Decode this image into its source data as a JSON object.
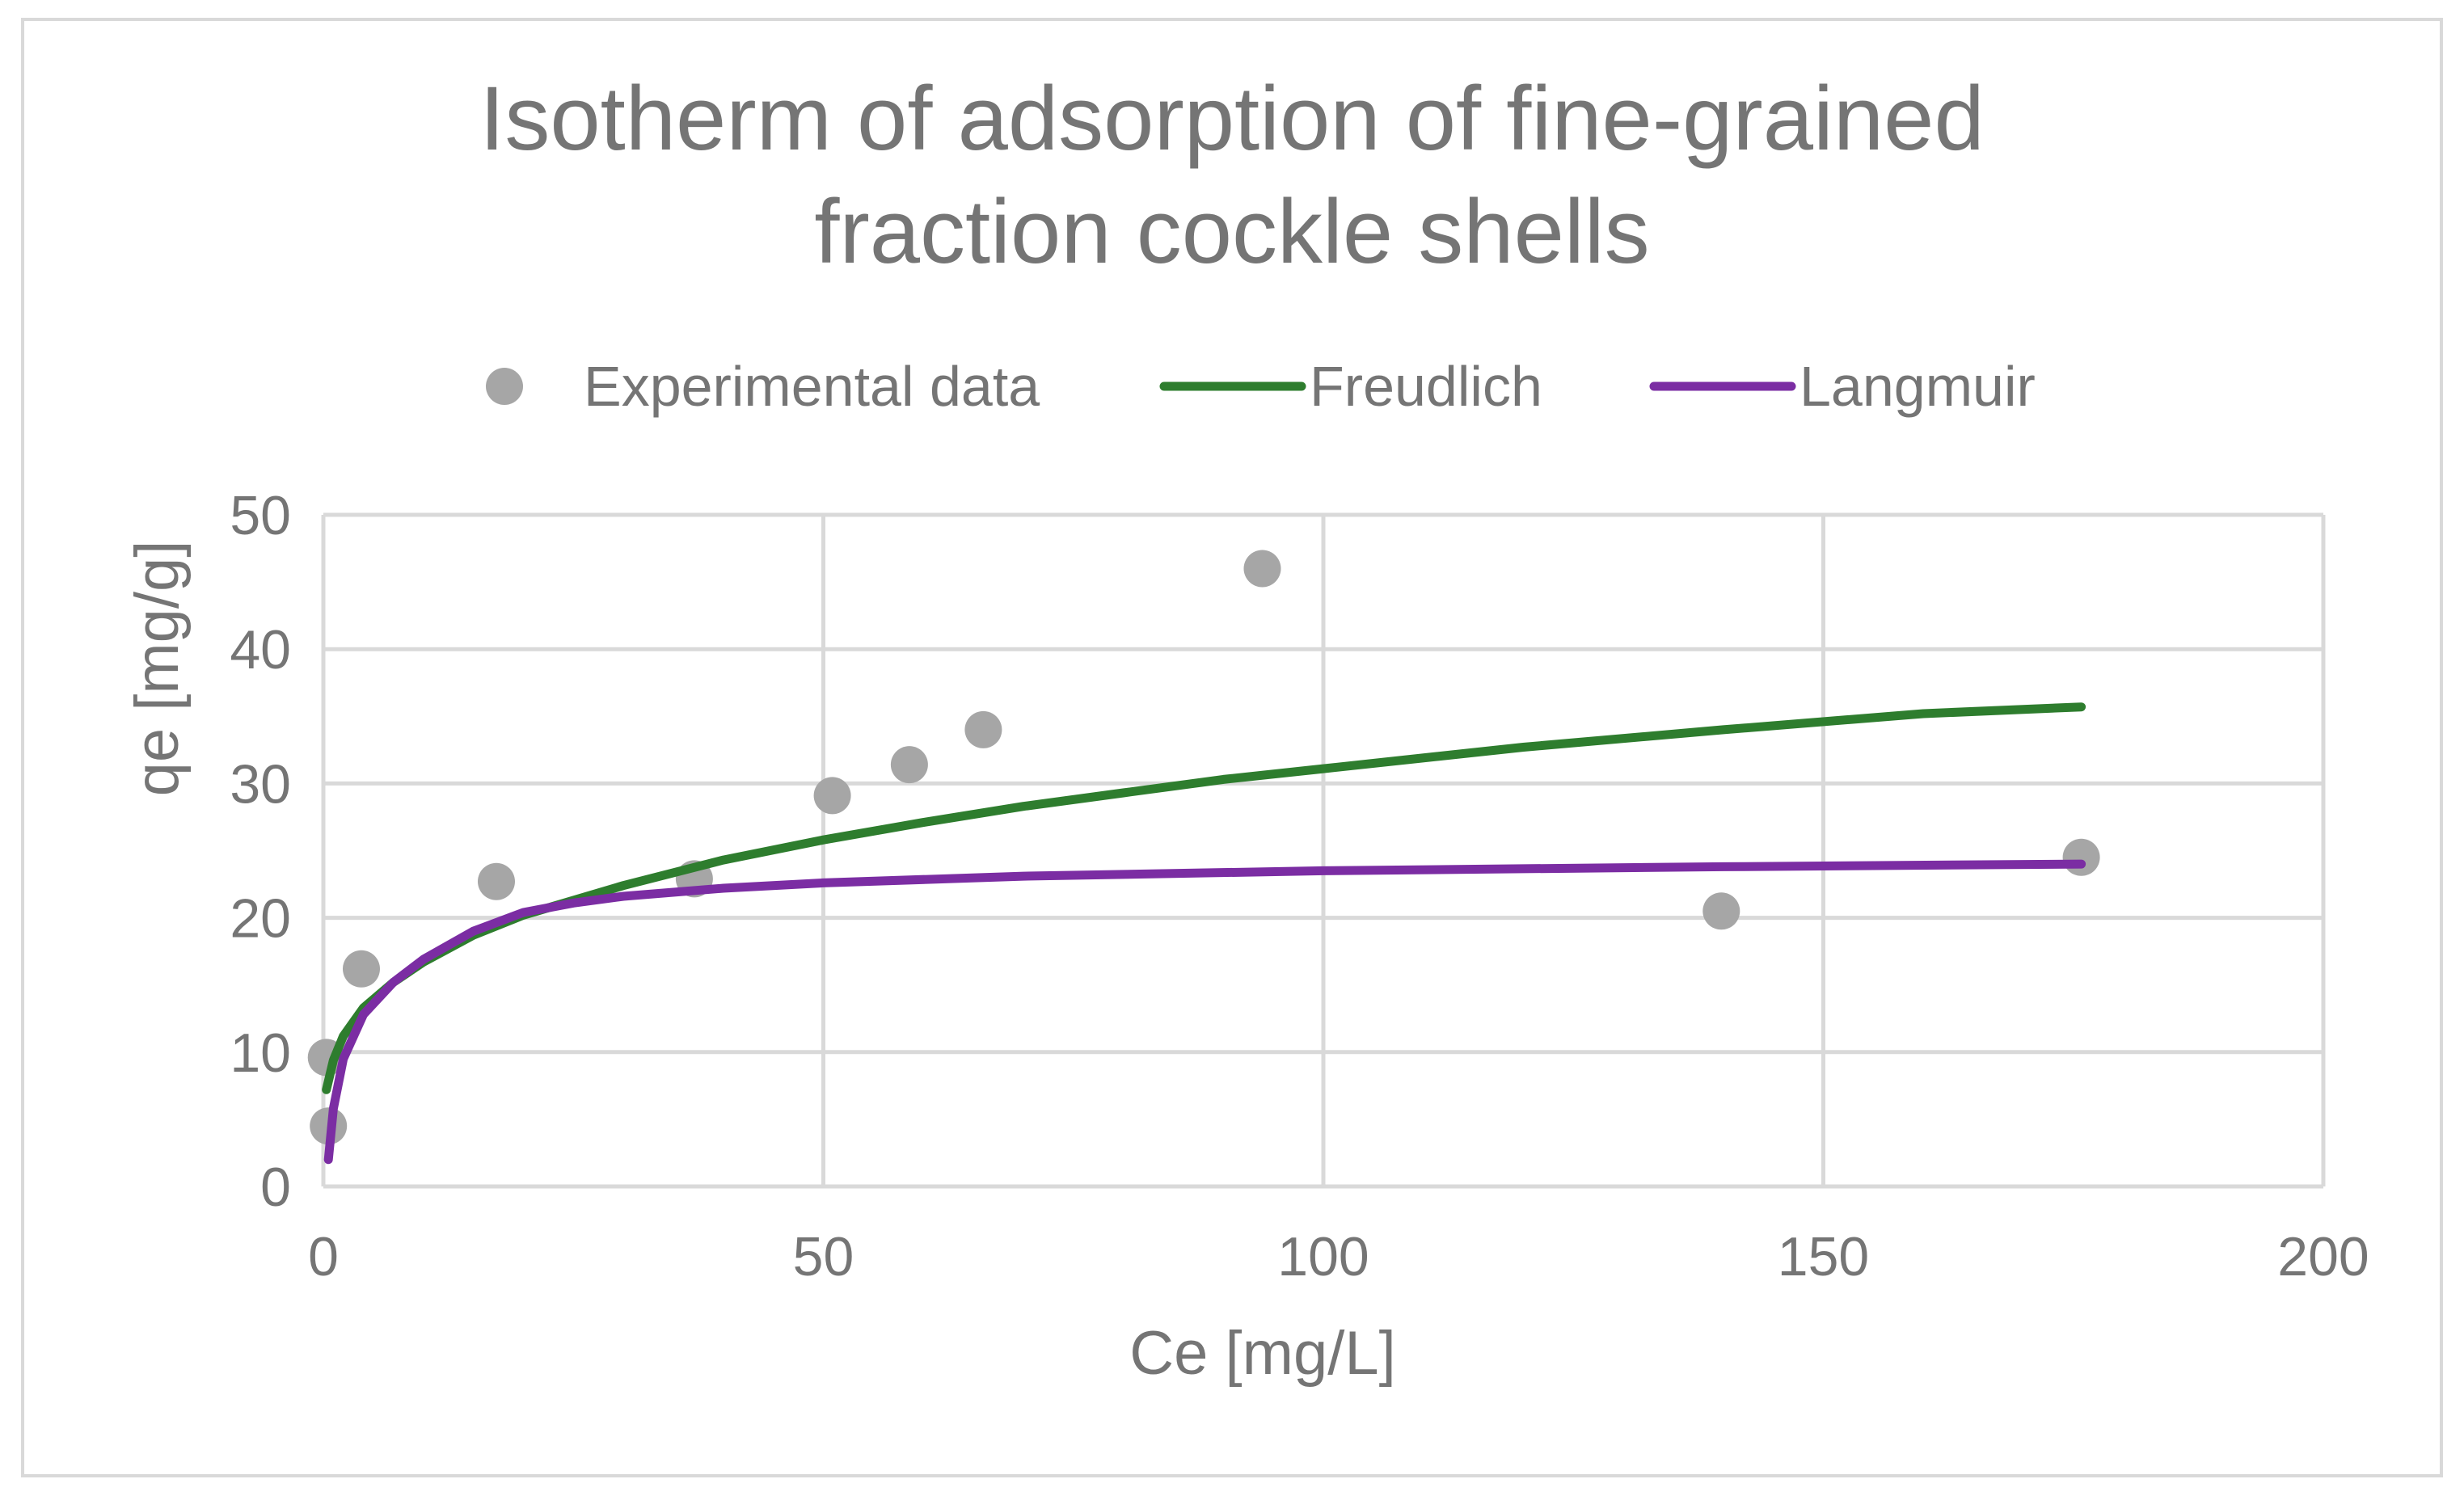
{
  "chart_data": {
    "type": "scatter",
    "title": "Isotherm of adsorption of fine-grained fraction cockle shells",
    "title_lines": [
      "Isotherm of adsorption of fine-grained",
      "fraction cockle shells"
    ],
    "xlabel": "Ce [mg/L]",
    "ylabel": "qe [mg/g]",
    "xlim": [
      0,
      200
    ],
    "ylim": [
      0,
      50
    ],
    "x_ticks": [
      0,
      50,
      100,
      150,
      200
    ],
    "y_ticks": [
      0,
      10,
      20,
      30,
      40,
      50
    ],
    "grid": true,
    "legend_position": "top",
    "series": [
      {
        "name": "Experimental data",
        "kind": "markers",
        "color": "#a6a6a6",
        "points": [
          {
            "x": 0.3,
            "y": 9.6
          },
          {
            "x": 0.5,
            "y": 4.5
          },
          {
            "x": 3.8,
            "y": 16.2
          },
          {
            "x": 17.3,
            "y": 22.7
          },
          {
            "x": 37.1,
            "y": 22.9
          },
          {
            "x": 50.9,
            "y": 29.1
          },
          {
            "x": 58.6,
            "y": 31.4
          },
          {
            "x": 66.0,
            "y": 34.0
          },
          {
            "x": 93.9,
            "y": 46.0
          },
          {
            "x": 139.8,
            "y": 20.5
          },
          {
            "x": 175.8,
            "y": 24.5
          }
        ]
      },
      {
        "name": "Freudlich",
        "kind": "line",
        "color": "#2e7d2e",
        "points": [
          {
            "x": 0.3,
            "y": 7.2
          },
          {
            "x": 1,
            "y": 9.4
          },
          {
            "x": 2,
            "y": 11.2
          },
          {
            "x": 4,
            "y": 13.3
          },
          {
            "x": 7,
            "y": 15.2
          },
          {
            "x": 10,
            "y": 16.7
          },
          {
            "x": 15,
            "y": 18.7
          },
          {
            "x": 20,
            "y": 20.2
          },
          {
            "x": 30,
            "y": 22.4
          },
          {
            "x": 40,
            "y": 24.3
          },
          {
            "x": 50,
            "y": 25.8
          },
          {
            "x": 60,
            "y": 27.1
          },
          {
            "x": 70,
            "y": 28.3
          },
          {
            "x": 80,
            "y": 29.3
          },
          {
            "x": 90,
            "y": 30.3
          },
          {
            "x": 100,
            "y": 31.1
          },
          {
            "x": 120,
            "y": 32.7
          },
          {
            "x": 140,
            "y": 34.0
          },
          {
            "x": 160,
            "y": 35.2
          },
          {
            "x": 175.8,
            "y": 35.7
          }
        ]
      },
      {
        "name": "Langmuir",
        "kind": "line",
        "color": "#7b2da3",
        "points": [
          {
            "x": 0.5,
            "y": 2.0
          },
          {
            "x": 1,
            "y": 5.8
          },
          {
            "x": 2,
            "y": 9.5
          },
          {
            "x": 4,
            "y": 12.8
          },
          {
            "x": 7,
            "y": 15.2
          },
          {
            "x": 10,
            "y": 16.9
          },
          {
            "x": 15,
            "y": 19.0
          },
          {
            "x": 20,
            "y": 20.4
          },
          {
            "x": 25,
            "y": 21.1
          },
          {
            "x": 30,
            "y": 21.6
          },
          {
            "x": 40,
            "y": 22.2
          },
          {
            "x": 50,
            "y": 22.6
          },
          {
            "x": 70,
            "y": 23.1
          },
          {
            "x": 100,
            "y": 23.5
          },
          {
            "x": 140,
            "y": 23.8
          },
          {
            "x": 175.8,
            "y": 24.0
          }
        ]
      }
    ]
  }
}
